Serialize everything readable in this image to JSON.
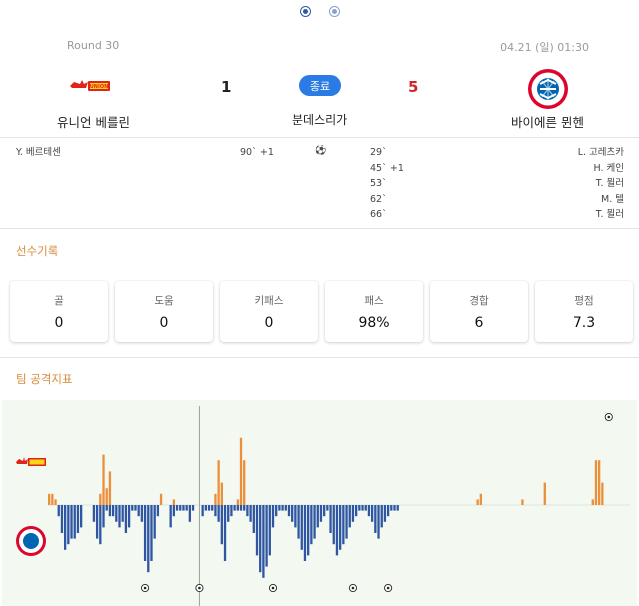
{
  "pagination": {
    "dots": [
      "active",
      "inactive"
    ]
  },
  "match": {
    "round": "Round 30",
    "datetime": "04.21 (일) 01:30",
    "status": "종료",
    "league": "분데스리가",
    "home": {
      "name": "유니언 베를린",
      "score": "1",
      "logo": "union-berlin-logo"
    },
    "away": {
      "name": "바이에른 뮌헨",
      "score": "5",
      "logo": "bayern-munich-logo"
    }
  },
  "events": {
    "home": [
      {
        "player": "Y. 베르테센",
        "time": "90` +1"
      }
    ],
    "ball_icon": "⚽",
    "away": [
      {
        "player": "L. 고레츠카",
        "time": "29`"
      },
      {
        "player": "H. 케인",
        "time": "45` +1"
      },
      {
        "player": "T. 뮐러",
        "time": "53`"
      },
      {
        "player": "M. 텔",
        "time": "62`"
      },
      {
        "player": "T. 뮐러",
        "time": "66`"
      }
    ]
  },
  "player_stats": {
    "title": "선수기록",
    "items": [
      {
        "label": "골",
        "value": "0"
      },
      {
        "label": "도움",
        "value": "0"
      },
      {
        "label": "키패스",
        "value": "0"
      },
      {
        "label": "패스",
        "value": "98%"
      },
      {
        "label": "경합",
        "value": "6"
      },
      {
        "label": "평점",
        "value": "7.3"
      }
    ]
  },
  "attack_index": {
    "title": "팀 공격지표",
    "colors": {
      "home": "#ec8f3a",
      "away": "#2e56a2",
      "background": "#f3f8f1"
    }
  },
  "chart_data": {
    "type": "bar",
    "x_unit": "minute",
    "halftime_after_index": 46,
    "series": [
      {
        "values": [
          2,
          2,
          1,
          0,
          0,
          0,
          0,
          0,
          0,
          0,
          0,
          0,
          0,
          0,
          0,
          0,
          2,
          9,
          3,
          6,
          0,
          0,
          0,
          0,
          0,
          0,
          0,
          0,
          0,
          0,
          0,
          0,
          0,
          0,
          0,
          2,
          0,
          0,
          0,
          1,
          0,
          0,
          0,
          0,
          0,
          0,
          0,
          0,
          0,
          0,
          0,
          0,
          2,
          8,
          4,
          0,
          0,
          0,
          0,
          1,
          12,
          8,
          0,
          0,
          0,
          0,
          0,
          0,
          0,
          0,
          0,
          0,
          0,
          0,
          0,
          0,
          0,
          0,
          0,
          0,
          0,
          0,
          0,
          0,
          0,
          0,
          0,
          0,
          0,
          0,
          0,
          0,
          0,
          0,
          0,
          0,
          0,
          0,
          0,
          0,
          0,
          0,
          0,
          0,
          0,
          0,
          0,
          0,
          0,
          0,
          0,
          0,
          0,
          0,
          0,
          0,
          0,
          0,
          0,
          0,
          0,
          0,
          0,
          0,
          0,
          0,
          0,
          0,
          0,
          0,
          0,
          0,
          0,
          0,
          1,
          2,
          0,
          0,
          0,
          0,
          0,
          0,
          0,
          0,
          0,
          0,
          0,
          0,
          1,
          0,
          0,
          0,
          0,
          0,
          0,
          4,
          0,
          0,
          0,
          0,
          0,
          0,
          0,
          0,
          0,
          0,
          0,
          0,
          0,
          0,
          1,
          8,
          8,
          4
        ]
      },
      {
        "values": [
          0,
          0,
          0,
          -2,
          -5,
          -8,
          -7,
          -6,
          -6,
          -5,
          -4,
          0,
          0,
          0,
          -3,
          -6,
          -7,
          -4,
          -1,
          -2,
          -2,
          -3,
          -4,
          -3,
          -5,
          -4,
          -1,
          -1,
          -2,
          -3,
          -10,
          -12,
          -10,
          -6,
          -2,
          0,
          0,
          0,
          -4,
          -2,
          -1,
          -1,
          -1,
          -1,
          -3,
          -1,
          0,
          0,
          -2,
          -1,
          -1,
          -1,
          -2,
          -3,
          -7,
          -10,
          -3,
          -2,
          -1,
          -1,
          -1,
          -1,
          -2,
          -3,
          -5,
          -9,
          -12,
          -13,
          -11,
          -9,
          -4,
          -2,
          -1,
          -1,
          -1,
          -2,
          -3,
          -4,
          -6,
          -8,
          -10,
          -9,
          -7,
          -6,
          -4,
          -3,
          -2,
          -1,
          -5,
          -7,
          -9,
          -8,
          -7,
          -6,
          -4,
          -3,
          -2,
          -1,
          -1,
          -1,
          -2,
          -3,
          -5,
          -6,
          -4,
          -3,
          -2,
          -1,
          -1,
          -1,
          0,
          0,
          0,
          0,
          0,
          0,
          0,
          0,
          0,
          0,
          0,
          0,
          0,
          0,
          0,
          0,
          0,
          0,
          0,
          0,
          0,
          0,
          0,
          0,
          0,
          0,
          0,
          0,
          0,
          0,
          0,
          0,
          0,
          0,
          0,
          0,
          0,
          0,
          0,
          0,
          0,
          0,
          0,
          0,
          0,
          0,
          0,
          0,
          0,
          0,
          0,
          0,
          0,
          0,
          0,
          0,
          0,
          0,
          0,
          0,
          0,
          0,
          0,
          0,
          0,
          0,
          0,
          0,
          0,
          0,
          0,
          0
        ]
      }
    ],
    "goal_markers": {
      "home_minutes": [
        "90+1"
      ],
      "away_minutes": [
        "29",
        "45+1",
        "53",
        "62",
        "66"
      ]
    }
  }
}
